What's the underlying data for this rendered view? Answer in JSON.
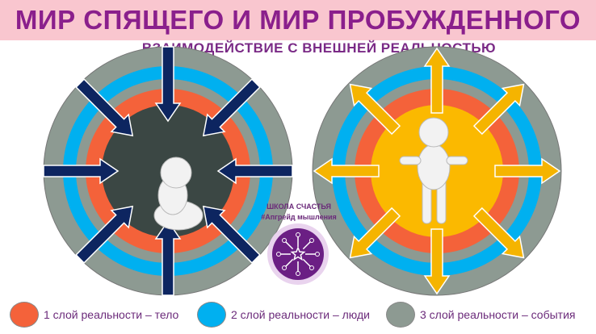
{
  "title": "МИР СПЯЩЕГО И МИР ПРОБУЖДЕННОГО",
  "subtitle": "ВЗАИМОДЕЙСТВИЕ С ВНЕШНЕЙ РЕАЛЬНОСТЬЮ",
  "school": {
    "line1": "ШКОЛА СЧАСТЬЯ",
    "line2": "#Апгрейд мышления"
  },
  "colors": {
    "layer1": "#f4623a",
    "layer2": "#00b0f0",
    "layer3": "#8d9a92",
    "sleeper_center": "#3b4744",
    "awake_center": "#fbb900",
    "arrow_in": "#0d2560",
    "arrow_out": "#f5b400",
    "logo": "#6b1f84"
  },
  "legend": [
    {
      "label": "1 слой реальности – тело",
      "color": "#f4623a"
    },
    {
      "label": "2 слой реальности – люди",
      "color": "#00b0f0"
    },
    {
      "label": "3 слой реальности – события",
      "color": "#8d9a92"
    }
  ]
}
